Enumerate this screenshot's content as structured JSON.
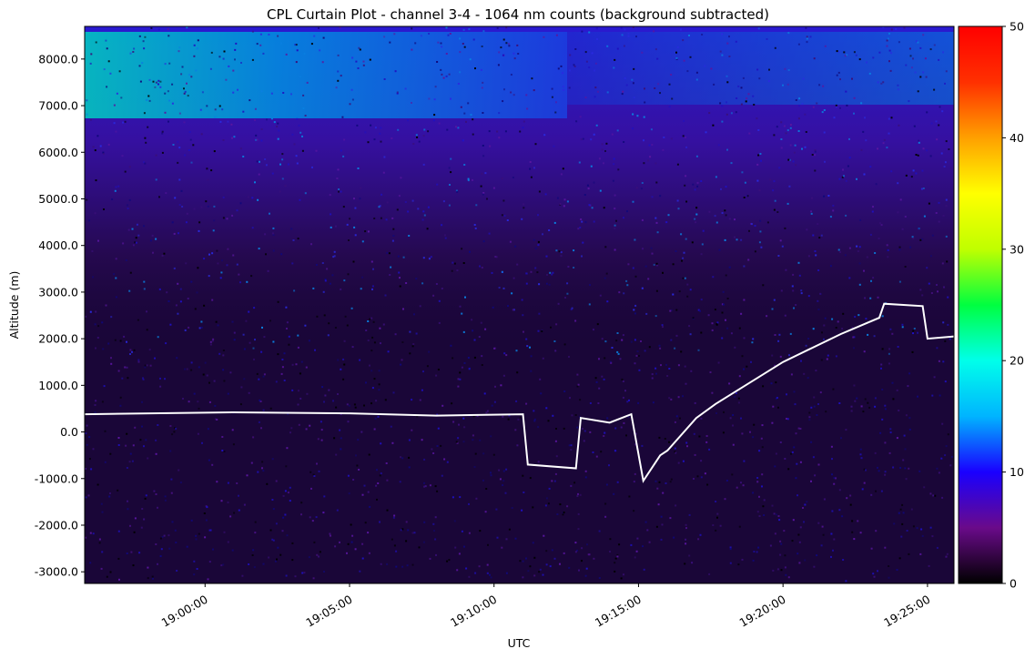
{
  "chart_data": {
    "type": "heatmap",
    "title": "CPL Curtain Plot - channel 3-4 - 1064 nm counts (background subtracted)",
    "xlabel": "UTC",
    "ylabel": "Altitude (m)",
    "x_ticks": [
      "19:00:00",
      "19:05:00",
      "19:10:00",
      "19:15:00",
      "19:20:00",
      "19:25:00"
    ],
    "y_ticks": [
      "8000.0",
      "7000.0",
      "6000.0",
      "5000.0",
      "4000.0",
      "3000.0",
      "2000.0",
      "1000.0",
      "0.0",
      "-1000.0",
      "-2000.0",
      "-3000.0"
    ],
    "xlim": [
      "18:55:50",
      "19:25:55"
    ],
    "ylim": [
      -3250,
      8700
    ],
    "colorbar": {
      "ticks": [
        "0",
        "10",
        "20",
        "30",
        "40",
        "50"
      ],
      "range": [
        0,
        50
      ],
      "colormap": [
        "#000000",
        "#6a0a8a",
        "#1a00ff",
        "#00b4ff",
        "#00ffea",
        "#00ff40",
        "#c0ff00",
        "#ffff00",
        "#ffa000",
        "#ff3000",
        "#ff0000"
      ]
    },
    "surface_return_line": {
      "color": "#ffffff",
      "x": [
        "18:55:50",
        "19:01:00",
        "19:05:00",
        "19:08:00",
        "19:11:00",
        "19:11:10",
        "19:12:50",
        "19:13:00",
        "19:14:00",
        "19:14:45",
        "19:15:10",
        "19:15:45",
        "19:16:00",
        "19:17:00",
        "19:17:40",
        "19:20:00",
        "19:22:00",
        "19:23:20",
        "19:23:30",
        "19:24:50",
        "19:25:00",
        "19:25:55"
      ],
      "y": [
        380,
        420,
        400,
        350,
        380,
        -700,
        -780,
        300,
        200,
        380,
        -1050,
        -500,
        -400,
        300,
        600,
        1500,
        2100,
        2450,
        2750,
        2700,
        2000,
        2050
      ]
    }
  }
}
